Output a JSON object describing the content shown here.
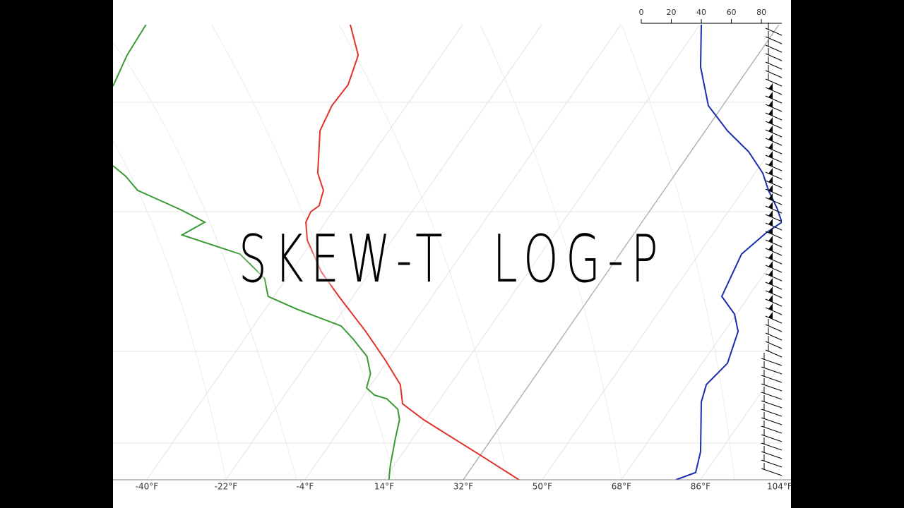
{
  "chart_data": {
    "type": "skewt",
    "title": "SKEW-T LOG-P",
    "xlim": [
      -47.7,
      104.5
    ],
    "xticks": [
      {
        "value": -40,
        "label": "-40°F"
      },
      {
        "value": -22,
        "label": "-22°F"
      },
      {
        "value": -4,
        "label": "-4°F"
      },
      {
        "value": 14,
        "label": "14°F"
      },
      {
        "value": 32,
        "label": "32°F"
      },
      {
        "value": 50,
        "label": "50°F"
      },
      {
        "value": 68,
        "label": "68°F"
      },
      {
        "value": 86,
        "label": "86°F"
      },
      {
        "value": 104,
        "label": "104°F"
      }
    ],
    "x2lim": [
      0,
      93.6
    ],
    "x2ticks": [
      0,
      20,
      40,
      60,
      80
    ],
    "ylim": [
      0,
      100
    ],
    "grid": true,
    "freezing_line": 32,
    "series": [
      {
        "color": "#e0332b",
        "x": [
          44.7,
          35.9,
          23.0,
          18.2,
          17.7,
          14.2,
          9.8,
          3.7,
          -0.3,
          -3.5,
          -3.8,
          -2.7,
          -0.8,
          0.2,
          -1.1,
          -0.6,
          2.1,
          5.8,
          8.1,
          6.3
        ],
        "y": [
          0,
          5.4,
          13.2,
          16.7,
          20.9,
          26.4,
          32.6,
          40.3,
          45.7,
          52.7,
          56.6,
          58.9,
          60.2,
          63.6,
          67.4,
          76.7,
          82.2,
          86.8,
          93.3,
          100
        ]
      },
      {
        "color": "#3a9a35",
        "x": [
          15.1,
          15.4,
          16.6,
          17.5,
          17.1,
          14.6,
          11.8,
          10.0,
          10.9,
          10.1,
          6.9,
          4.2,
          -5.9,
          -12.4,
          -13.2,
          -16.4,
          -18.8,
          -32.0,
          -26.8,
          -32.4,
          -42.1,
          -44.8,
          -47.7,
          null,
          -47.7,
          -44.5,
          -40.2
        ],
        "y": [
          0,
          3.1,
          9.3,
          13.2,
          15.5,
          17.8,
          18.6,
          20.2,
          23.3,
          27.1,
          31.0,
          33.8,
          37.5,
          40.3,
          44.2,
          47.3,
          49.6,
          53.8,
          56.6,
          59.4,
          63.6,
          66.7,
          69.0,
          null,
          86.5,
          93.3,
          100
        ]
      },
      {
        "color": "#1a2db0",
        "axis": "x2",
        "x": [
          23.1,
          36.2,
          39.5,
          40.0,
          43.3,
          57.4,
          64.5,
          62.1,
          53.6,
          66.8,
          83.3,
          93.6,
          90.4,
          84.7,
          80.9,
          71.5,
          57.4,
          44.7,
          39.5,
          40.0
        ],
        "y": [
          0,
          1.6,
          6.2,
          17.1,
          20.9,
          25.6,
          32.6,
          36.4,
          40.3,
          49.6,
          54.3,
          56.6,
          59.7,
          63.6,
          67.4,
          72.1,
          76.7,
          82.2,
          90.7,
          100
        ]
      }
    ]
  }
}
